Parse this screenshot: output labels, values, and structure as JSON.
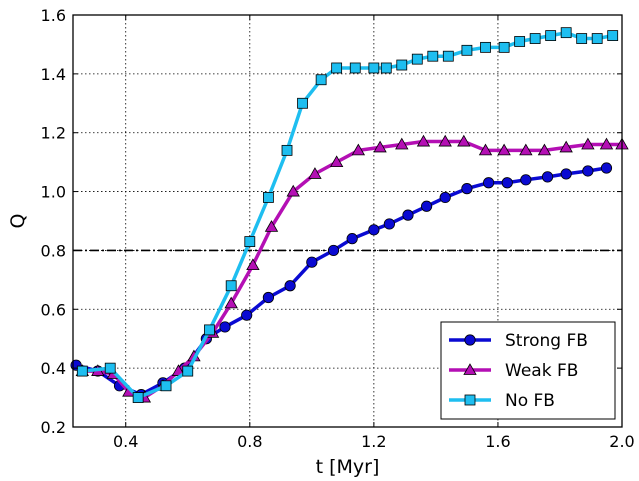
{
  "chart_data": {
    "type": "line",
    "xlabel": "t [Myr]",
    "ylabel": "Q",
    "xlim": [
      0.23,
      2.0
    ],
    "ylim": [
      0.2,
      1.6
    ],
    "xticks": [
      "0.4",
      "0.8",
      "1.2",
      "1.6",
      "2.0"
    ],
    "yticks": [
      "0.2",
      "0.4",
      "0.6",
      "0.8",
      "1.0",
      "1.2",
      "1.4",
      "1.6"
    ],
    "grid": true,
    "legend_position": "lower-right",
    "reference_line": {
      "y": 0.8,
      "style": "dash-dot"
    },
    "series": [
      {
        "name": "Strong FB",
        "color": "#0a0ad2",
        "marker": "circle",
        "x": [
          0.24,
          0.31,
          0.38,
          0.45,
          0.52,
          0.59,
          0.66,
          0.72,
          0.79,
          0.86,
          0.93,
          1.0,
          1.07,
          1.13,
          1.2,
          1.25,
          1.31,
          1.37,
          1.43,
          1.5,
          1.57,
          1.63,
          1.69,
          1.76,
          1.82,
          1.89,
          1.95
        ],
        "y": [
          0.41,
          0.39,
          0.34,
          0.31,
          0.35,
          0.4,
          0.5,
          0.54,
          0.58,
          0.64,
          0.68,
          0.76,
          0.8,
          0.84,
          0.87,
          0.89,
          0.92,
          0.95,
          0.98,
          1.01,
          1.03,
          1.03,
          1.04,
          1.05,
          1.06,
          1.07,
          1.08
        ]
      },
      {
        "name": "Weak FB",
        "color": "#b40fb4",
        "marker": "triangle",
        "x": [
          0.26,
          0.31,
          0.36,
          0.41,
          0.46,
          0.52,
          0.57,
          0.62,
          0.68,
          0.74,
          0.81,
          0.87,
          0.94,
          1.01,
          1.08,
          1.15,
          1.22,
          1.29,
          1.36,
          1.43,
          1.49,
          1.56,
          1.62,
          1.69,
          1.75,
          1.82,
          1.89,
          1.95,
          2.0
        ],
        "y": [
          0.39,
          0.39,
          0.38,
          0.32,
          0.3,
          0.34,
          0.39,
          0.44,
          0.52,
          0.62,
          0.75,
          0.88,
          1.0,
          1.06,
          1.1,
          1.14,
          1.15,
          1.16,
          1.17,
          1.17,
          1.17,
          1.14,
          1.14,
          1.14,
          1.14,
          1.15,
          1.16,
          1.16,
          1.16
        ]
      },
      {
        "name": "No FB",
        "color": "#1ebef0",
        "marker": "square",
        "x": [
          0.26,
          0.35,
          0.44,
          0.53,
          0.6,
          0.67,
          0.74,
          0.8,
          0.86,
          0.92,
          0.97,
          1.03,
          1.08,
          1.14,
          1.2,
          1.24,
          1.29,
          1.34,
          1.39,
          1.44,
          1.5,
          1.56,
          1.62,
          1.67,
          1.72,
          1.77,
          1.82,
          1.87,
          1.92,
          1.97
        ],
        "y": [
          0.39,
          0.4,
          0.3,
          0.34,
          0.39,
          0.53,
          0.68,
          0.83,
          0.98,
          1.14,
          1.3,
          1.38,
          1.42,
          1.42,
          1.42,
          1.42,
          1.43,
          1.45,
          1.46,
          1.46,
          1.48,
          1.49,
          1.49,
          1.51,
          1.52,
          1.53,
          1.54,
          1.52,
          1.52,
          1.53
        ]
      }
    ]
  }
}
